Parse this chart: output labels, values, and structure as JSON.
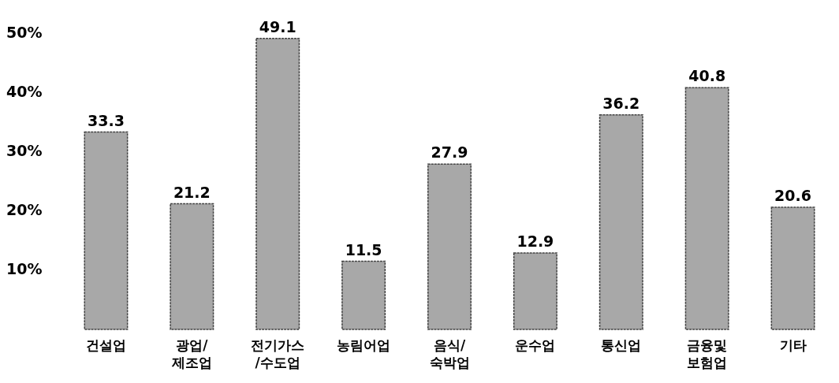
{
  "chart_data": {
    "type": "bar",
    "categories": [
      "건설업",
      "광업/\n제조업",
      "전기가스\n/수도업",
      "농림어업",
      "음식/\n숙박업",
      "운수업",
      "통신업",
      "금융및\n보험업",
      "기타"
    ],
    "values": [
      33.3,
      21.2,
      49.1,
      11.5,
      27.9,
      12.9,
      36.2,
      40.8,
      20.6
    ],
    "color": "#a8a8a8",
    "ylim": [
      0,
      50
    ],
    "yticks": [
      {
        "value": 10,
        "label": "10%"
      },
      {
        "value": 20,
        "label": "20%"
      },
      {
        "value": 30,
        "label": "30%"
      },
      {
        "value": 40,
        "label": "40%"
      },
      {
        "value": 50,
        "label": "50%"
      }
    ],
    "data_labels": true,
    "grid": false
  }
}
